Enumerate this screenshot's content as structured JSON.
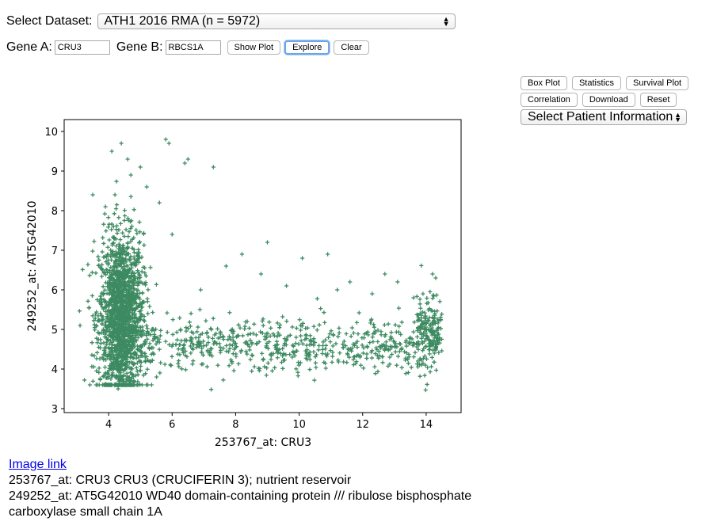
{
  "controls": {
    "dataset_label": "Select Dataset:",
    "dataset_value": "ATH1 2016 RMA (n = 5972)",
    "gene_a_label": "Gene A:",
    "gene_a_value": "CRU3",
    "gene_b_label": "Gene B:",
    "gene_b_value": "RBCS1A",
    "show_plot": "Show Plot",
    "explore": "Explore",
    "clear": "Clear"
  },
  "side": {
    "box_plot": "Box Plot",
    "statistics": "Statistics",
    "survival_plot": "Survival Plot",
    "correlation": "Correlation",
    "download": "Download",
    "reset": "Reset",
    "patient_select": "Select Patient Information"
  },
  "footer": {
    "image_link": "Image link",
    "ann_a": "253767_at: CRU3 CRU3 (CRUCIFERIN 3); nutrient reservoir",
    "ann_b": "249252_at: AT5G42010 WD40 domain-containing protein /// ribulose bisphosphate carboxylase small chain 1A"
  },
  "colors": {
    "marker": "#3d8a61",
    "link": "#0000ee",
    "focus": "#6aa6e8"
  },
  "chart_data": {
    "type": "scatter",
    "marker": "+",
    "title": "",
    "xlabel": "253767_at:  CRU3",
    "ylabel": "249252_at:  AT5G42010",
    "xlim": [
      2.6,
      15.1
    ],
    "ylim": [
      2.9,
      10.3
    ],
    "xticks": [
      4,
      6,
      8,
      10,
      12,
      14
    ],
    "yticks": [
      3,
      4,
      5,
      6,
      7,
      8,
      9,
      10
    ],
    "series": [
      {
        "x": [
          4.1,
          4.4,
          4.6,
          5.0,
          5.8,
          5.9,
          4.7,
          4.2,
          6.4,
          6.5,
          7.3,
          5.2,
          5.6,
          3.9,
          3.5,
          3.1,
          9.0,
          8.2,
          10.1,
          10.9,
          11.6,
          12.7,
          13.1,
          13.9,
          14.2,
          14.3,
          6.9,
          7.7,
          8.8,
          9.6,
          11.2,
          12.3,
          13.6,
          6.0,
          4.3
        ],
        "y": [
          9.5,
          9.7,
          9.3,
          9.1,
          9.8,
          9.7,
          8.9,
          8.4,
          9.2,
          9.3,
          9.1,
          8.6,
          8.2,
          8.1,
          8.4,
          5.1,
          7.2,
          6.9,
          6.8,
          6.9,
          6.2,
          6.4,
          6.2,
          5.9,
          6.4,
          6.3,
          6.0,
          6.6,
          6.4,
          6.1,
          6.0,
          5.9,
          5.8,
          7.4,
          3.5
        ]
      }
    ]
  }
}
